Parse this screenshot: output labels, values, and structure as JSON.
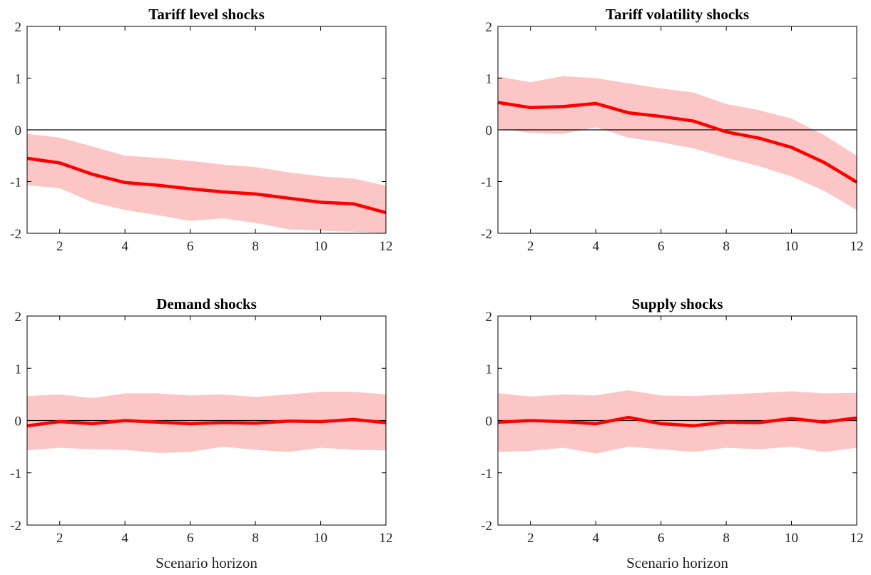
{
  "chart_data": [
    {
      "type": "line",
      "title": "Tariff level shocks",
      "xlabel": "",
      "ylabel": "",
      "xlim": [
        1,
        12
      ],
      "ylim": [
        -2,
        2
      ],
      "xticks": [
        "2",
        "4",
        "6",
        "8",
        "10",
        "12"
      ],
      "yticks": [
        "2",
        "1",
        "0",
        "-1",
        "-2"
      ],
      "x": [
        1,
        2,
        3,
        4,
        5,
        6,
        7,
        8,
        9,
        10,
        11,
        12
      ],
      "series": [
        {
          "values": [
            -0.55,
            -0.64,
            -0.86,
            -1.02,
            -1.07,
            -1.14,
            -1.2,
            -1.24,
            -1.32,
            -1.4,
            -1.43,
            -1.6
          ]
        }
      ],
      "band_upper": [
        -0.08,
        -0.15,
        -0.32,
        -0.5,
        -0.54,
        -0.6,
        -0.67,
        -0.72,
        -0.82,
        -0.9,
        -0.94,
        -1.08
      ],
      "band_lower": [
        -1.07,
        -1.13,
        -1.4,
        -1.55,
        -1.65,
        -1.76,
        -1.71,
        -1.8,
        -1.92,
        -1.95,
        -1.97,
        -2.0
      ],
      "zero_line": true,
      "colors": {
        "line": "#ff0000",
        "band": "#fcc6c6",
        "zero": "#000000"
      }
    },
    {
      "type": "line",
      "title": "Tariff volatility shocks",
      "xlabel": "",
      "ylabel": "",
      "xlim": [
        1,
        12
      ],
      "ylim": [
        -2,
        2
      ],
      "xticks": [
        "2",
        "4",
        "6",
        "8",
        "10",
        "12"
      ],
      "yticks": [
        "2",
        "1",
        "0",
        "-1",
        "-2"
      ],
      "x": [
        1,
        2,
        3,
        4,
        5,
        6,
        7,
        8,
        9,
        10,
        11,
        12
      ],
      "series": [
        {
          "values": [
            0.53,
            0.43,
            0.45,
            0.51,
            0.33,
            0.26,
            0.17,
            -0.04,
            -0.16,
            -0.34,
            -0.63,
            -1.01
          ]
        }
      ],
      "band_upper": [
        1.03,
        0.92,
        1.04,
        1.0,
        0.9,
        0.8,
        0.72,
        0.5,
        0.38,
        0.22,
        -0.1,
        -0.5
      ],
      "band_lower": [
        0.02,
        -0.06,
        -0.08,
        0.05,
        -0.15,
        -0.24,
        -0.36,
        -0.54,
        -0.7,
        -0.9,
        -1.18,
        -1.55
      ],
      "zero_line": true,
      "colors": {
        "line": "#ff0000",
        "band": "#fcc6c6",
        "zero": "#000000"
      }
    },
    {
      "type": "line",
      "title": "Demand shocks",
      "xlabel": "Scenario horizon",
      "ylabel": "",
      "xlim": [
        1,
        12
      ],
      "ylim": [
        -2,
        2
      ],
      "xticks": [
        "2",
        "4",
        "6",
        "8",
        "10",
        "12"
      ],
      "yticks": [
        "2",
        "1",
        "0",
        "-1",
        "-2"
      ],
      "x": [
        1,
        2,
        3,
        4,
        5,
        6,
        7,
        8,
        9,
        10,
        11,
        12
      ],
      "series": [
        {
          "values": [
            -0.1,
            -0.02,
            -0.06,
            0.0,
            -0.03,
            -0.06,
            -0.04,
            -0.05,
            -0.01,
            -0.02,
            0.02,
            -0.04
          ]
        }
      ],
      "band_upper": [
        0.47,
        0.5,
        0.43,
        0.52,
        0.52,
        0.48,
        0.5,
        0.45,
        0.5,
        0.55,
        0.55,
        0.5
      ],
      "band_lower": [
        -0.57,
        -0.52,
        -0.55,
        -0.56,
        -0.62,
        -0.6,
        -0.5,
        -0.56,
        -0.6,
        -0.52,
        -0.56,
        -0.57
      ],
      "zero_line": true,
      "colors": {
        "line": "#ff0000",
        "band": "#fcc6c6",
        "zero": "#000000"
      }
    },
    {
      "type": "line",
      "title": "Supply shocks",
      "xlabel": "Scenario horizon",
      "ylabel": "",
      "xlim": [
        1,
        12
      ],
      "ylim": [
        -2,
        2
      ],
      "xticks": [
        "2",
        "4",
        "6",
        "8",
        "10",
        "12"
      ],
      "yticks": [
        "2",
        "1",
        "0",
        "-1",
        "-2"
      ],
      "x": [
        1,
        2,
        3,
        4,
        5,
        6,
        7,
        8,
        9,
        10,
        11,
        12
      ],
      "series": [
        {
          "values": [
            -0.03,
            0.0,
            -0.02,
            -0.06,
            0.06,
            -0.06,
            -0.1,
            -0.03,
            -0.04,
            0.04,
            -0.03,
            0.05
          ]
        }
      ],
      "band_upper": [
        0.52,
        0.46,
        0.5,
        0.48,
        0.58,
        0.48,
        0.47,
        0.5,
        0.53,
        0.56,
        0.52,
        0.53
      ],
      "band_lower": [
        -0.6,
        -0.58,
        -0.52,
        -0.63,
        -0.5,
        -0.55,
        -0.6,
        -0.52,
        -0.55,
        -0.5,
        -0.6,
        -0.52
      ],
      "zero_line": true,
      "colors": {
        "line": "#ff0000",
        "band": "#fcc6c6",
        "zero": "#000000"
      }
    }
  ]
}
